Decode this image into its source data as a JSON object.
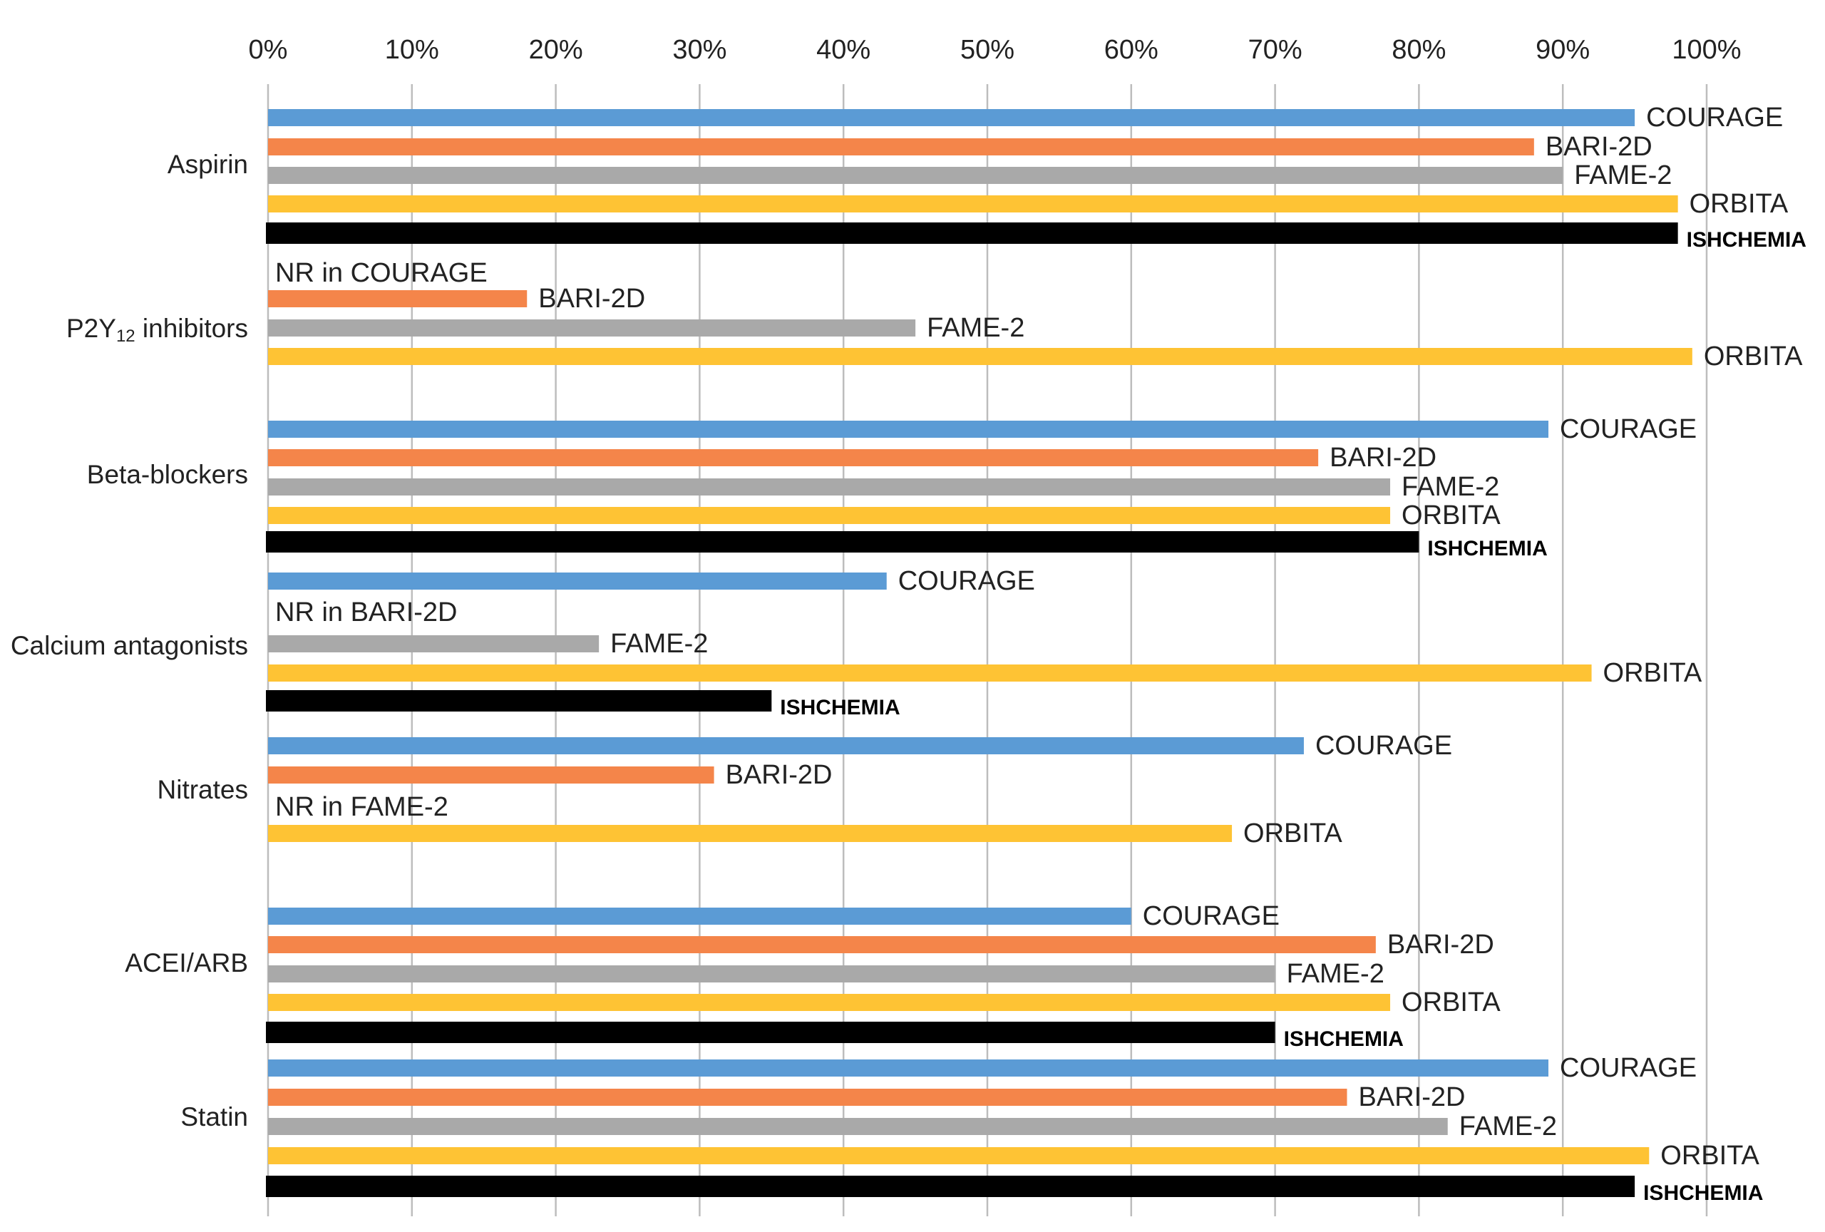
{
  "chart_data": {
    "type": "bar",
    "orientation": "horizontal",
    "xlim": [
      0,
      100
    ],
    "x_ticks": [
      "0%",
      "10%",
      "20%",
      "30%",
      "40%",
      "50%",
      "60%",
      "70%",
      "80%",
      "90%",
      "100%"
    ],
    "grid": "vertical",
    "colors": {
      "COURAGE": "#5b9bd5",
      "BARI-2D": "#f4854a",
      "FAME-2": "#a9a9a9",
      "ORBITA": "#fec334",
      "ISHCHEMIA": "#000000"
    },
    "groups": [
      {
        "category": "Aspirin",
        "bars": [
          {
            "trial": "COURAGE",
            "label": "COURAGE",
            "value": 95
          },
          {
            "trial": "BARI-2D",
            "label": "BARI-2D",
            "value": 88
          },
          {
            "trial": "FAME-2",
            "label": "FAME-2",
            "value": 90
          },
          {
            "trial": "ORBITA",
            "label": "ORBITA",
            "value": 98
          },
          {
            "trial": "ISHCHEMIA",
            "label": "ISHCHEMIA",
            "value": 98
          }
        ]
      },
      {
        "category": "P2Y12 inhibitors",
        "category_main": "P2Y",
        "category_sub": "12",
        "category_rest": " inhibitors",
        "bars": [
          {
            "trial": "COURAGE",
            "label": "NR in COURAGE",
            "value": null
          },
          {
            "trial": "BARI-2D",
            "label": "BARI-2D",
            "value": 18
          },
          {
            "trial": "FAME-2",
            "label": "FAME-2",
            "value": 45
          },
          {
            "trial": "ORBITA",
            "label": "ORBITA",
            "value": 99
          }
        ]
      },
      {
        "category": "Beta-blockers",
        "bars": [
          {
            "trial": "COURAGE",
            "label": "COURAGE",
            "value": 89
          },
          {
            "trial": "BARI-2D",
            "label": "BARI-2D",
            "value": 73
          },
          {
            "trial": "FAME-2",
            "label": "FAME-2",
            "value": 78
          },
          {
            "trial": "ORBITA",
            "label": "ORBITA",
            "value": 78
          },
          {
            "trial": "ISHCHEMIA",
            "label": "ISHCHEMIA",
            "value": 80
          }
        ]
      },
      {
        "category": "Calcium antagonists",
        "bars": [
          {
            "trial": "COURAGE",
            "label": "COURAGE",
            "value": 43
          },
          {
            "trial": "BARI-2D",
            "label": "NR in BARI-2D",
            "value": null
          },
          {
            "trial": "FAME-2",
            "label": "FAME-2",
            "value": 23
          },
          {
            "trial": "ORBITA",
            "label": "ORBITA",
            "value": 92
          },
          {
            "trial": "ISHCHEMIA",
            "label": "ISHCHEMIA",
            "value": 35
          }
        ]
      },
      {
        "category": "Nitrates",
        "bars": [
          {
            "trial": "COURAGE",
            "label": "COURAGE",
            "value": 72
          },
          {
            "trial": "BARI-2D",
            "label": "BARI-2D",
            "value": 31
          },
          {
            "trial": "FAME-2",
            "label": "NR in FAME-2",
            "value": null
          },
          {
            "trial": "ORBITA",
            "label": "ORBITA",
            "value": 67
          }
        ]
      },
      {
        "category": "ACEI/ARB",
        "bars": [
          {
            "trial": "COURAGE",
            "label": "COURAGE",
            "value": 60
          },
          {
            "trial": "BARI-2D",
            "label": "BARI-2D",
            "value": 77
          },
          {
            "trial": "FAME-2",
            "label": "FAME-2",
            "value": 70
          },
          {
            "trial": "ORBITA",
            "label": "ORBITA",
            "value": 78
          },
          {
            "trial": "ISHCHEMIA",
            "label": "ISHCHEMIA",
            "value": 70
          }
        ]
      },
      {
        "category": "Statin",
        "bars": [
          {
            "trial": "COURAGE",
            "label": "COURAGE",
            "value": 89
          },
          {
            "trial": "BARI-2D",
            "label": "BARI-2D",
            "value": 75
          },
          {
            "trial": "FAME-2",
            "label": "FAME-2",
            "value": 82
          },
          {
            "trial": "ORBITA",
            "label": "ORBITA",
            "value": 96
          },
          {
            "trial": "ISHCHEMIA",
            "label": "ISHCHEMIA",
            "value": 95
          }
        ]
      }
    ]
  }
}
